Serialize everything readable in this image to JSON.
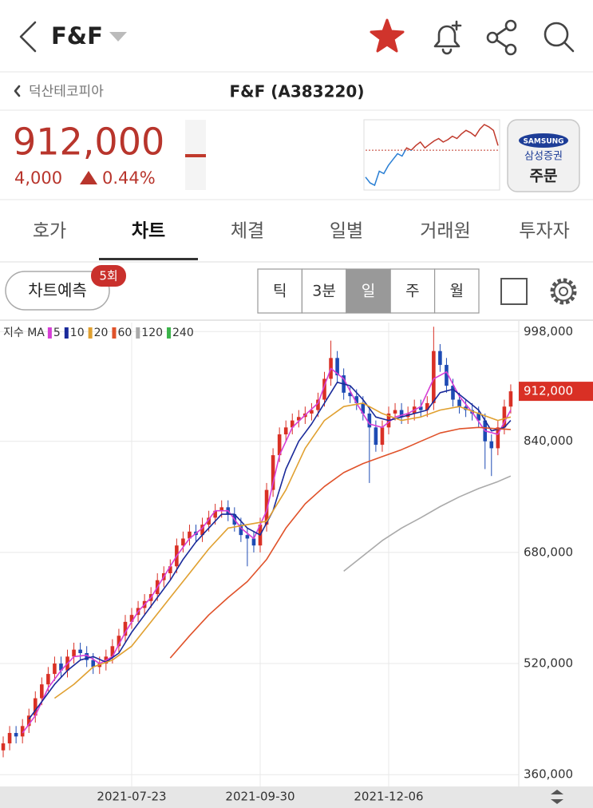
{
  "header": {
    "title": "F&F"
  },
  "subheader": {
    "back_label": "덕산테코피아",
    "title": "F&F (A383220)"
  },
  "quote": {
    "price": "912,000",
    "change": "4,000",
    "change_pct": "0.44%"
  },
  "mini_chart": {
    "base": 908000,
    "up_color": "#c0392b",
    "down_color": "#2a7fd4",
    "values": [
      885000,
      880000,
      878000,
      890000,
      888000,
      895000,
      900000,
      905000,
      903000,
      910000,
      908000,
      912000,
      915000,
      910000,
      913000,
      916000,
      918000,
      915000,
      917000,
      920000,
      918000,
      922000,
      925000,
      923000,
      920000,
      926000,
      930000,
      928000,
      925000,
      912000
    ]
  },
  "order_button": {
    "brand": "SAMSUNG",
    "company": "삼성증권",
    "label": "주문"
  },
  "tabs": {
    "items": [
      "호가",
      "차트",
      "체결",
      "일별",
      "거래원",
      "투자자"
    ],
    "selected": 1
  },
  "toolbar": {
    "predict": "차트예측",
    "badge": "5회",
    "periods": [
      "틱",
      "3분",
      "일",
      "주",
      "월"
    ],
    "selected": 2
  },
  "chart_data": {
    "type": "candlestick",
    "legend_title": "지수 MA",
    "up_color": "#d93025",
    "down_color": "#1e4bb4",
    "grid": true,
    "xlim": [
      -0.5,
      80.25
    ],
    "ylim": [
      343000,
      1011000
    ],
    "xticks": [
      {
        "value": 20,
        "label": "2021-07-23"
      },
      {
        "value": 40,
        "label": "2021-09-30"
      },
      {
        "value": 60,
        "label": "2021-12-06"
      }
    ],
    "yticks": [
      {
        "value": 360000,
        "label": "360,000"
      },
      {
        "value": 520000,
        "label": "520,000"
      },
      {
        "value": 680000,
        "label": "680,000"
      },
      {
        "value": 840000,
        "label": "840,000"
      },
      {
        "value": 998000,
        "label": "998,000"
      }
    ],
    "price_tag": {
      "value": 912000,
      "label": "912,000",
      "color": "#d93025"
    },
    "candles": {
      "open": [
        395000,
        405000,
        420000,
        415000,
        430000,
        445000,
        470000,
        490000,
        505000,
        520000,
        510000,
        530000,
        540000,
        535000,
        525000,
        515000,
        520000,
        530000,
        545000,
        560000,
        580000,
        590000,
        600000,
        610000,
        620000,
        640000,
        650000,
        660000,
        690000,
        700000,
        710000,
        705000,
        720000,
        730000,
        740000,
        745000,
        735000,
        720000,
        705000,
        700000,
        690000,
        720000,
        770000,
        820000,
        850000,
        860000,
        870000,
        875000,
        880000,
        885000,
        900000,
        930000,
        960000,
        935000,
        910000,
        905000,
        895000,
        880000,
        860000,
        835000,
        860000,
        880000,
        885000,
        875000,
        880000,
        890000,
        885000,
        895000,
        970000,
        950000,
        920000,
        900000,
        890000,
        885000,
        880000,
        870000,
        840000,
        830000,
        860000,
        890000
      ],
      "high": [
        415000,
        430000,
        430000,
        440000,
        455000,
        480000,
        500000,
        515000,
        530000,
        530000,
        540000,
        550000,
        550000,
        545000,
        535000,
        530000,
        540000,
        555000,
        570000,
        590000,
        600000,
        610000,
        620000,
        630000,
        650000,
        660000,
        670000,
        700000,
        710000,
        720000,
        720000,
        730000,
        740000,
        750000,
        755000,
        755000,
        745000,
        730000,
        715000,
        710000,
        730000,
        780000,
        830000,
        860000,
        870000,
        880000,
        885000,
        890000,
        895000,
        910000,
        940000,
        985000,
        970000,
        945000,
        920000,
        915000,
        905000,
        890000,
        870000,
        870000,
        890000,
        895000,
        895000,
        890000,
        900000,
        900000,
        905000,
        1005000,
        980000,
        960000,
        930000,
        910000,
        900000,
        895000,
        890000,
        880000,
        850000,
        870000,
        900000,
        922000
      ],
      "low": [
        385000,
        395000,
        405000,
        405000,
        420000,
        435000,
        460000,
        480000,
        495000,
        500000,
        500000,
        520000,
        525000,
        515000,
        505000,
        505000,
        510000,
        520000,
        535000,
        550000,
        570000,
        580000,
        590000,
        600000,
        610000,
        630000,
        640000,
        650000,
        680000,
        690000,
        695000,
        695000,
        710000,
        720000,
        730000,
        725000,
        710000,
        695000,
        660000,
        680000,
        680000,
        710000,
        760000,
        810000,
        840000,
        850000,
        860000,
        865000,
        870000,
        875000,
        890000,
        920000,
        925000,
        900000,
        895000,
        885000,
        870000,
        780000,
        825000,
        825000,
        850000,
        870000,
        865000,
        865000,
        870000,
        875000,
        875000,
        885000,
        940000,
        910000,
        890000,
        880000,
        875000,
        870000,
        860000,
        800000,
        790000,
        820000,
        850000,
        880000
      ],
      "close": [
        405000,
        420000,
        415000,
        430000,
        445000,
        470000,
        490000,
        505000,
        520000,
        510000,
        530000,
        540000,
        535000,
        525000,
        515000,
        520000,
        530000,
        545000,
        560000,
        580000,
        590000,
        600000,
        610000,
        620000,
        640000,
        650000,
        660000,
        690000,
        700000,
        710000,
        705000,
        720000,
        730000,
        740000,
        745000,
        735000,
        720000,
        705000,
        700000,
        690000,
        720000,
        770000,
        820000,
        850000,
        860000,
        870000,
        875000,
        880000,
        885000,
        900000,
        930000,
        960000,
        935000,
        910000,
        905000,
        895000,
        880000,
        860000,
        835000,
        860000,
        880000,
        885000,
        875000,
        880000,
        890000,
        885000,
        895000,
        970000,
        950000,
        920000,
        900000,
        890000,
        885000,
        880000,
        870000,
        840000,
        830000,
        860000,
        890000,
        912000
      ]
    },
    "ma_series": [
      {
        "name": "5",
        "color": "#d63fd6",
        "x": [
          3,
          5,
          7,
          9,
          11,
          13,
          15,
          17,
          19,
          21,
          23,
          25,
          27,
          29,
          31,
          33,
          35,
          37,
          39,
          41,
          43,
          45,
          47,
          49,
          51,
          53,
          55,
          57,
          59,
          61,
          63,
          65,
          67,
          69,
          71,
          73,
          75,
          77,
          79
        ],
        "values": [
          420000,
          445000,
          485000,
          510000,
          530000,
          532000,
          520000,
          530000,
          565000,
          595000,
          615000,
          645000,
          675000,
          700000,
          715000,
          740000,
          740000,
          715000,
          700000,
          740000,
          820000,
          860000,
          878000,
          895000,
          945000,
          930000,
          895000,
          865000,
          860000,
          875000,
          880000,
          890000,
          930000,
          940000,
          905000,
          882000,
          855000,
          850000,
          885000
        ]
      },
      {
        "name": "10",
        "color": "#1a2a9a",
        "x": [
          4,
          6,
          8,
          10,
          12,
          14,
          16,
          18,
          20,
          22,
          24,
          26,
          28,
          30,
          32,
          34,
          36,
          38,
          40,
          42,
          44,
          46,
          48,
          50,
          52,
          54,
          56,
          58,
          60,
          62,
          64,
          66,
          68,
          70,
          72,
          74,
          76,
          78,
          79
        ],
        "values": [
          440000,
          465000,
          490000,
          510000,
          525000,
          530000,
          522000,
          535000,
          565000,
          590000,
          615000,
          640000,
          670000,
          695000,
          715000,
          735000,
          735000,
          715000,
          705000,
          740000,
          800000,
          840000,
          865000,
          895000,
          925000,
          920000,
          900000,
          875000,
          870000,
          875000,
          880000,
          885000,
          910000,
          915000,
          900000,
          885000,
          855000,
          860000,
          870000
        ]
      },
      {
        "name": "20",
        "color": "#e0a030",
        "x": [
          8,
          11,
          14,
          17,
          20,
          23,
          26,
          29,
          32,
          35,
          38,
          41,
          44,
          47,
          50,
          53,
          56,
          59,
          62,
          65,
          68,
          71,
          74,
          77,
          79
        ],
        "values": [
          470000,
          490000,
          515000,
          525000,
          545000,
          580000,
          615000,
          650000,
          685000,
          715000,
          720000,
          725000,
          770000,
          830000,
          870000,
          890000,
          895000,
          880000,
          870000,
          875000,
          885000,
          890000,
          880000,
          870000,
          875000
        ]
      },
      {
        "name": "60",
        "color": "#e0522a",
        "x": [
          26,
          29,
          32,
          35,
          38,
          41,
          44,
          47,
          50,
          53,
          56,
          59,
          62,
          65,
          68,
          71,
          74,
          77,
          79
        ],
        "values": [
          528000,
          560000,
          590000,
          615000,
          638000,
          670000,
          715000,
          750000,
          775000,
          795000,
          808000,
          818000,
          828000,
          840000,
          852000,
          858000,
          860000,
          858000,
          857000
        ]
      },
      {
        "name": "120",
        "color": "#aaaaaa",
        "x": [
          53,
          56,
          59,
          62,
          65,
          68,
          71,
          74,
          77,
          79
        ],
        "values": [
          653000,
          675000,
          697000,
          715000,
          730000,
          746000,
          760000,
          772000,
          782000,
          790000
        ]
      },
      {
        "name": "240",
        "color": "#3cb44b",
        "x": [],
        "values": []
      }
    ]
  }
}
